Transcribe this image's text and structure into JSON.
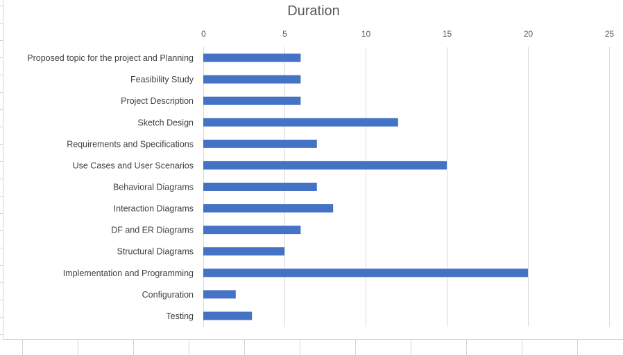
{
  "chart_data": {
    "type": "bar",
    "orientation": "horizontal",
    "title": "Duration",
    "xlabel": "",
    "ylabel": "",
    "xlim": [
      0,
      25
    ],
    "x_ticks": [
      0,
      5,
      10,
      15,
      20,
      25
    ],
    "x_tick_labels": [
      "0",
      "5",
      "10",
      "15",
      "20",
      "25"
    ],
    "x_axis_position": "top",
    "grid": true,
    "legend": "none",
    "bar_color": "#4472c4",
    "categories": [
      "Proposed topic for the project and Planning",
      "Feasibility Study",
      "Project Description",
      "Sketch Design",
      "Requirements and Specifications",
      "Use Cases and User Scenarios",
      "Behavioral Diagrams",
      "Interaction Diagrams",
      "DF and ER Diagrams",
      "Structural Diagrams",
      "Implementation and Programming",
      "Configuration",
      "Testing"
    ],
    "values": [
      6,
      6,
      6,
      12,
      7,
      15,
      7,
      8,
      6,
      5,
      20,
      2,
      3
    ]
  }
}
